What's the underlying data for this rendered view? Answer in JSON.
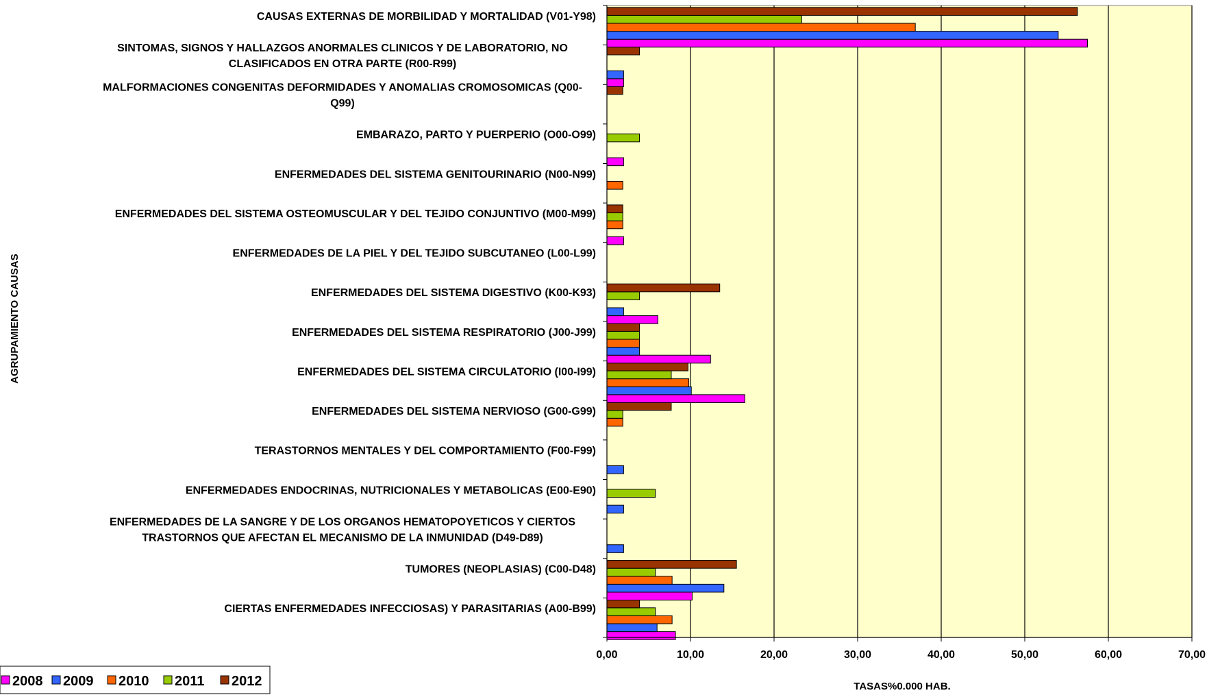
{
  "chart_data": {
    "type": "bar",
    "orientation": "horizontal",
    "xlabel": "TASAS%0.000 HAB.",
    "ylabel": "AGRUPAMIENTO CAUSAS",
    "xlim": [
      0,
      70
    ],
    "xticks": [
      "0,00",
      "10,00",
      "20,00",
      "30,00",
      "40,00",
      "50,00",
      "60,00",
      "70,00"
    ],
    "grid": "vertical",
    "plot_background": "#FFFFCC",
    "legend_position": "bottom-left",
    "categories": [
      [
        "CIERTAS ENFERMEDADES INFECCIOSAS) Y PARASITARIAS (A00-B99)"
      ],
      [
        "TUMORES (NEOPLASIAS)  (C00-D48)"
      ],
      [
        "ENFERMEDADES DE LA SANGRE Y DE LOS ORGANOS HEMATOPOYETICOS Y CIERTOS",
        "TRASTORNOS QUE AFECTAN EL MECANISMO DE LA INMUNIDAD (D49-D89)"
      ],
      [
        "ENFERMEDADES ENDOCRINAS, NUTRICIONALES Y METABOLICAS (E00-E90)"
      ],
      [
        "TERASTORNOS MENTALES Y DEL COMPORTAMIENTO (F00-F99)"
      ],
      [
        "ENFERMEDADES DEL SISTEMA NERVIOSO (G00-G99)"
      ],
      [
        "ENFERMEDADES DEL SISTEMA CIRCULATORIO (I00-I99)"
      ],
      [
        "ENFERMEDADES DEL SISTEMA RESPIRATORIO (J00-J99)"
      ],
      [
        "ENFERMEDADES DEL SISTEMA DIGESTIVO (K00-K93)"
      ],
      [
        "ENFERMEDADES DE LA PIEL Y DEL TEJIDO SUBCUTANEO (L00-L99)"
      ],
      [
        "ENFERMEDADES DEL SISTEMA OSTEOMUSCULAR Y DEL TEJIDO CONJUNTIVO (M00-M99)"
      ],
      [
        "ENFERMEDADES DEL SISTEMA GENITOURINARIO (N00-N99)"
      ],
      [
        "EMBARAZO, PARTO Y PUERPERIO (O00-O99)"
      ],
      [
        "MALFORMACIONES CONGENITAS DEFORMIDADES Y ANOMALIAS CROMOSOMICAS (Q00-",
        "Q99)"
      ],
      [
        "SINTOMAS, SIGNOS Y HALLAZGOS ANORMALES CLINICOS Y DE LABORATORIO, NO",
        "CLASIFICADOS EN OTRA PARTE (R00-R99)"
      ],
      [
        "CAUSAS EXTERNAS DE MORBILIDAD Y MORTALIDAD (V01-Y98)"
      ]
    ],
    "series": [
      {
        "name": "2008",
        "color": "#FF00FF",
        "values": [
          8.2,
          10.2,
          0,
          0,
          0,
          0,
          16.5,
          12.4,
          6.1,
          0,
          2.0,
          0,
          2.0,
          0,
          2.0,
          57.5
        ]
      },
      {
        "name": "2009",
        "color": "#3366FF",
        "values": [
          6.0,
          14.0,
          2.0,
          2.0,
          2.0,
          0,
          10.1,
          3.9,
          2.0,
          0,
          0,
          0,
          0,
          0,
          2.0,
          54.0
        ]
      },
      {
        "name": "2010",
        "color": "#FF6600",
        "values": [
          7.8,
          7.8,
          0,
          0,
          0,
          1.9,
          9.8,
          3.9,
          0,
          0,
          1.9,
          1.9,
          0,
          0,
          0,
          36.9
        ]
      },
      {
        "name": "2011",
        "color": "#99CC00",
        "values": [
          5.8,
          5.8,
          0,
          5.8,
          0,
          1.9,
          7.7,
          3.9,
          3.9,
          0,
          1.9,
          0,
          3.9,
          0,
          0,
          23.3
        ]
      },
      {
        "name": "2012",
        "color": "#993300",
        "values": [
          3.9,
          15.5,
          0,
          0,
          0,
          7.7,
          9.7,
          3.9,
          13.5,
          0,
          1.9,
          0,
          0,
          1.9,
          3.9,
          56.3
        ]
      }
    ]
  }
}
